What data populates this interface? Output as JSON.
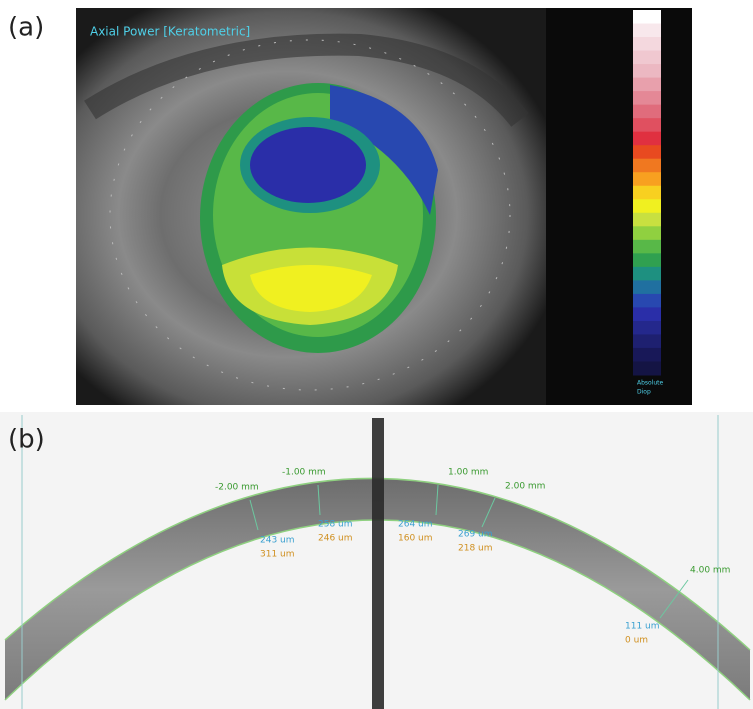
{
  "panel_a": {
    "label": "(a)",
    "title": "Axial Power [Keratometric]",
    "scale_caption": [
      "Absolute",
      "Diop"
    ]
  },
  "panel_b": {
    "label": "(b)",
    "markers": [
      {
        "position": "-2.00 mm",
        "thickness_1": "243 um",
        "thickness_2": "311 um"
      },
      {
        "position": "-1.00 mm",
        "thickness_1": "258 um",
        "thickness_2": "246 um"
      },
      {
        "position": "1.00 mm",
        "thickness_1": "264 um",
        "thickness_2": "160 um"
      },
      {
        "position": "2.00 mm",
        "thickness_1": "269 um",
        "thickness_2": "218 um"
      },
      {
        "position": "4.00 mm",
        "thickness_1": "111 um",
        "thickness_2": "0 um"
      }
    ]
  }
}
